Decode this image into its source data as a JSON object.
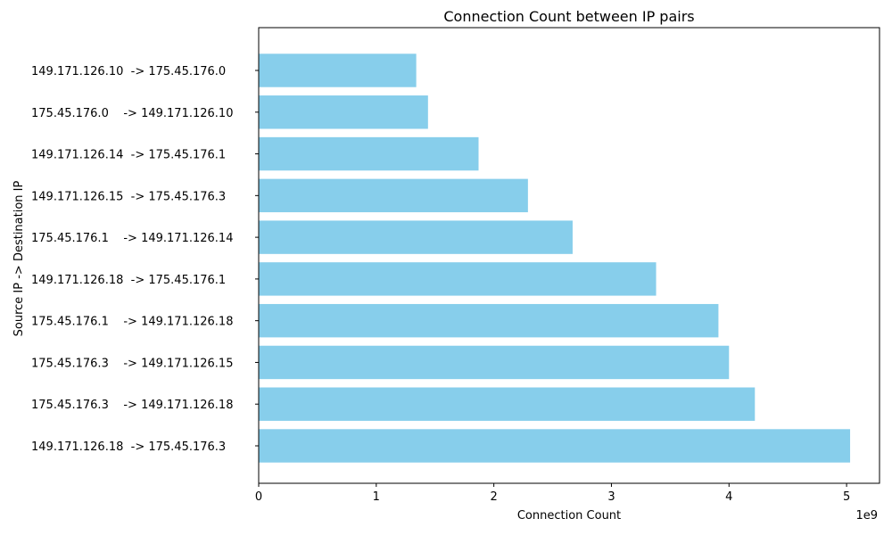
{
  "chart_data": {
    "type": "bar",
    "orientation": "horizontal",
    "title": "Connection Count between IP pairs",
    "xlabel": "Connection Count",
    "ylabel": "Source IP -> Destination IP",
    "x_offset_label": "1e9",
    "xlim": [
      0,
      5.28
    ],
    "x_ticks": [
      0,
      1,
      2,
      3,
      4,
      5
    ],
    "bar_color": "#87ceeb",
    "grid": false,
    "categories": [
      "149.171.126.10  -> 175.45.176.0    ",
      "175.45.176.0    -> 149.171.126.10  ",
      "149.171.126.14  -> 175.45.176.1    ",
      "149.171.126.15  -> 175.45.176.3    ",
      "175.45.176.1    -> 149.171.126.14  ",
      "149.171.126.18  -> 175.45.176.1    ",
      "175.45.176.1    -> 149.171.126.18  ",
      "175.45.176.3    -> 149.171.126.15  ",
      "175.45.176.3    -> 149.171.126.18  ",
      "149.171.126.18  -> 175.45.176.3    "
    ],
    "values": [
      1.34,
      1.44,
      1.87,
      2.29,
      2.67,
      3.38,
      3.91,
      4.0,
      4.22,
      5.03
    ]
  }
}
